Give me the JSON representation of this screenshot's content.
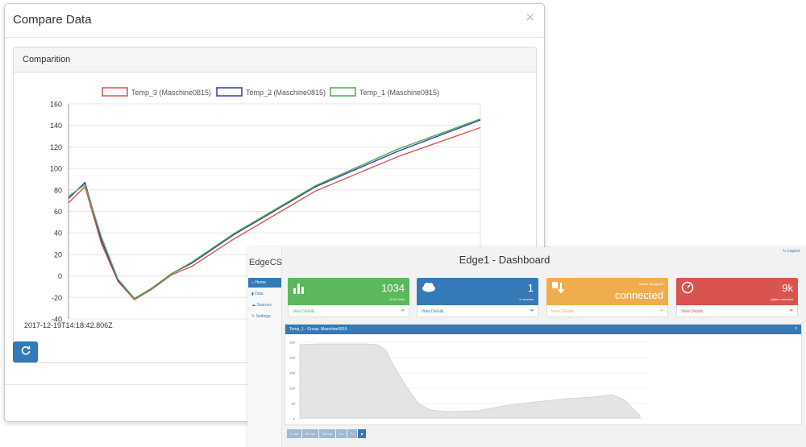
{
  "modal": {
    "title": "Compare Data",
    "close_label": "×",
    "panel_title": "Comparition",
    "timestamp": "2017-12-19T14:18:42.806Z",
    "refresh_icon": "refresh-icon"
  },
  "chart_data": {
    "type": "line",
    "xlabel": "",
    "ylabel": "",
    "ylim": [
      -40,
      160
    ],
    "yticks": [
      -40,
      -20,
      0,
      20,
      40,
      60,
      80,
      100,
      120,
      140,
      160
    ],
    "legend": "top-center",
    "grid": true,
    "x": [
      0,
      4,
      8,
      12,
      16,
      20,
      25,
      30,
      40,
      60,
      80,
      100
    ],
    "series": [
      {
        "name": "Temp_3 (Maschine0815)",
        "color": "#d9534f",
        "values": [
          68,
          83,
          30,
          -5,
          -22,
          -13,
          1,
          9,
          34,
          79,
          111,
          138
        ]
      },
      {
        "name": "Temp_2 (Maschine0815)",
        "color": "#3b3bb3",
        "values": [
          72,
          87,
          33,
          -4,
          -21,
          -12,
          2,
          12,
          38,
          83,
          116,
          145
        ]
      },
      {
        "name": "Temp_1 (Maschine0815)",
        "color": "#4cae4c",
        "values": [
          74,
          85,
          36,
          -3,
          -21,
          -12,
          2,
          13,
          39,
          84,
          118,
          146
        ]
      }
    ]
  },
  "dashboard": {
    "brand": "EdgeCS",
    "title": "Edge1 - Dashboard",
    "logout": "Logout",
    "sidebar": [
      {
        "label": "Home",
        "icon": "home-icon"
      },
      {
        "label": "Data",
        "icon": "bar-chart-icon"
      },
      {
        "label": "Sources",
        "icon": "cloud-icon"
      },
      {
        "label": "Settings",
        "icon": "wrench-icon"
      }
    ],
    "cards": [
      {
        "big": "1034",
        "small": "/1034 data",
        "status": "",
        "footer": "View Details",
        "color": "#5cb85c",
        "icon": "bar-chart-icon"
      },
      {
        "big": "1",
        "small": "/1 sources",
        "status": "",
        "footer": "View Details",
        "color": "#337ab7",
        "icon": "cloud-icon"
      },
      {
        "big": "connected",
        "small": "",
        "status": "Status MongoDB",
        "footer": "View Details",
        "color": "#f0ad4e",
        "icon": "transfer-icon"
      },
      {
        "big": "9k",
        "small": "data/s collected",
        "status": "",
        "footer": "View Details",
        "color": "#d9534f",
        "icon": "dashboard-gauge-icon"
      }
    ],
    "graph": {
      "header": "Temp_1 - Group: Maschine0815",
      "close": "x",
      "yticks": [
        "250",
        "200",
        "150",
        "100",
        "50",
        "0"
      ]
    },
    "range_buttons": [
      "1 min",
      "15 min",
      "30 min",
      "1 h"
    ]
  }
}
